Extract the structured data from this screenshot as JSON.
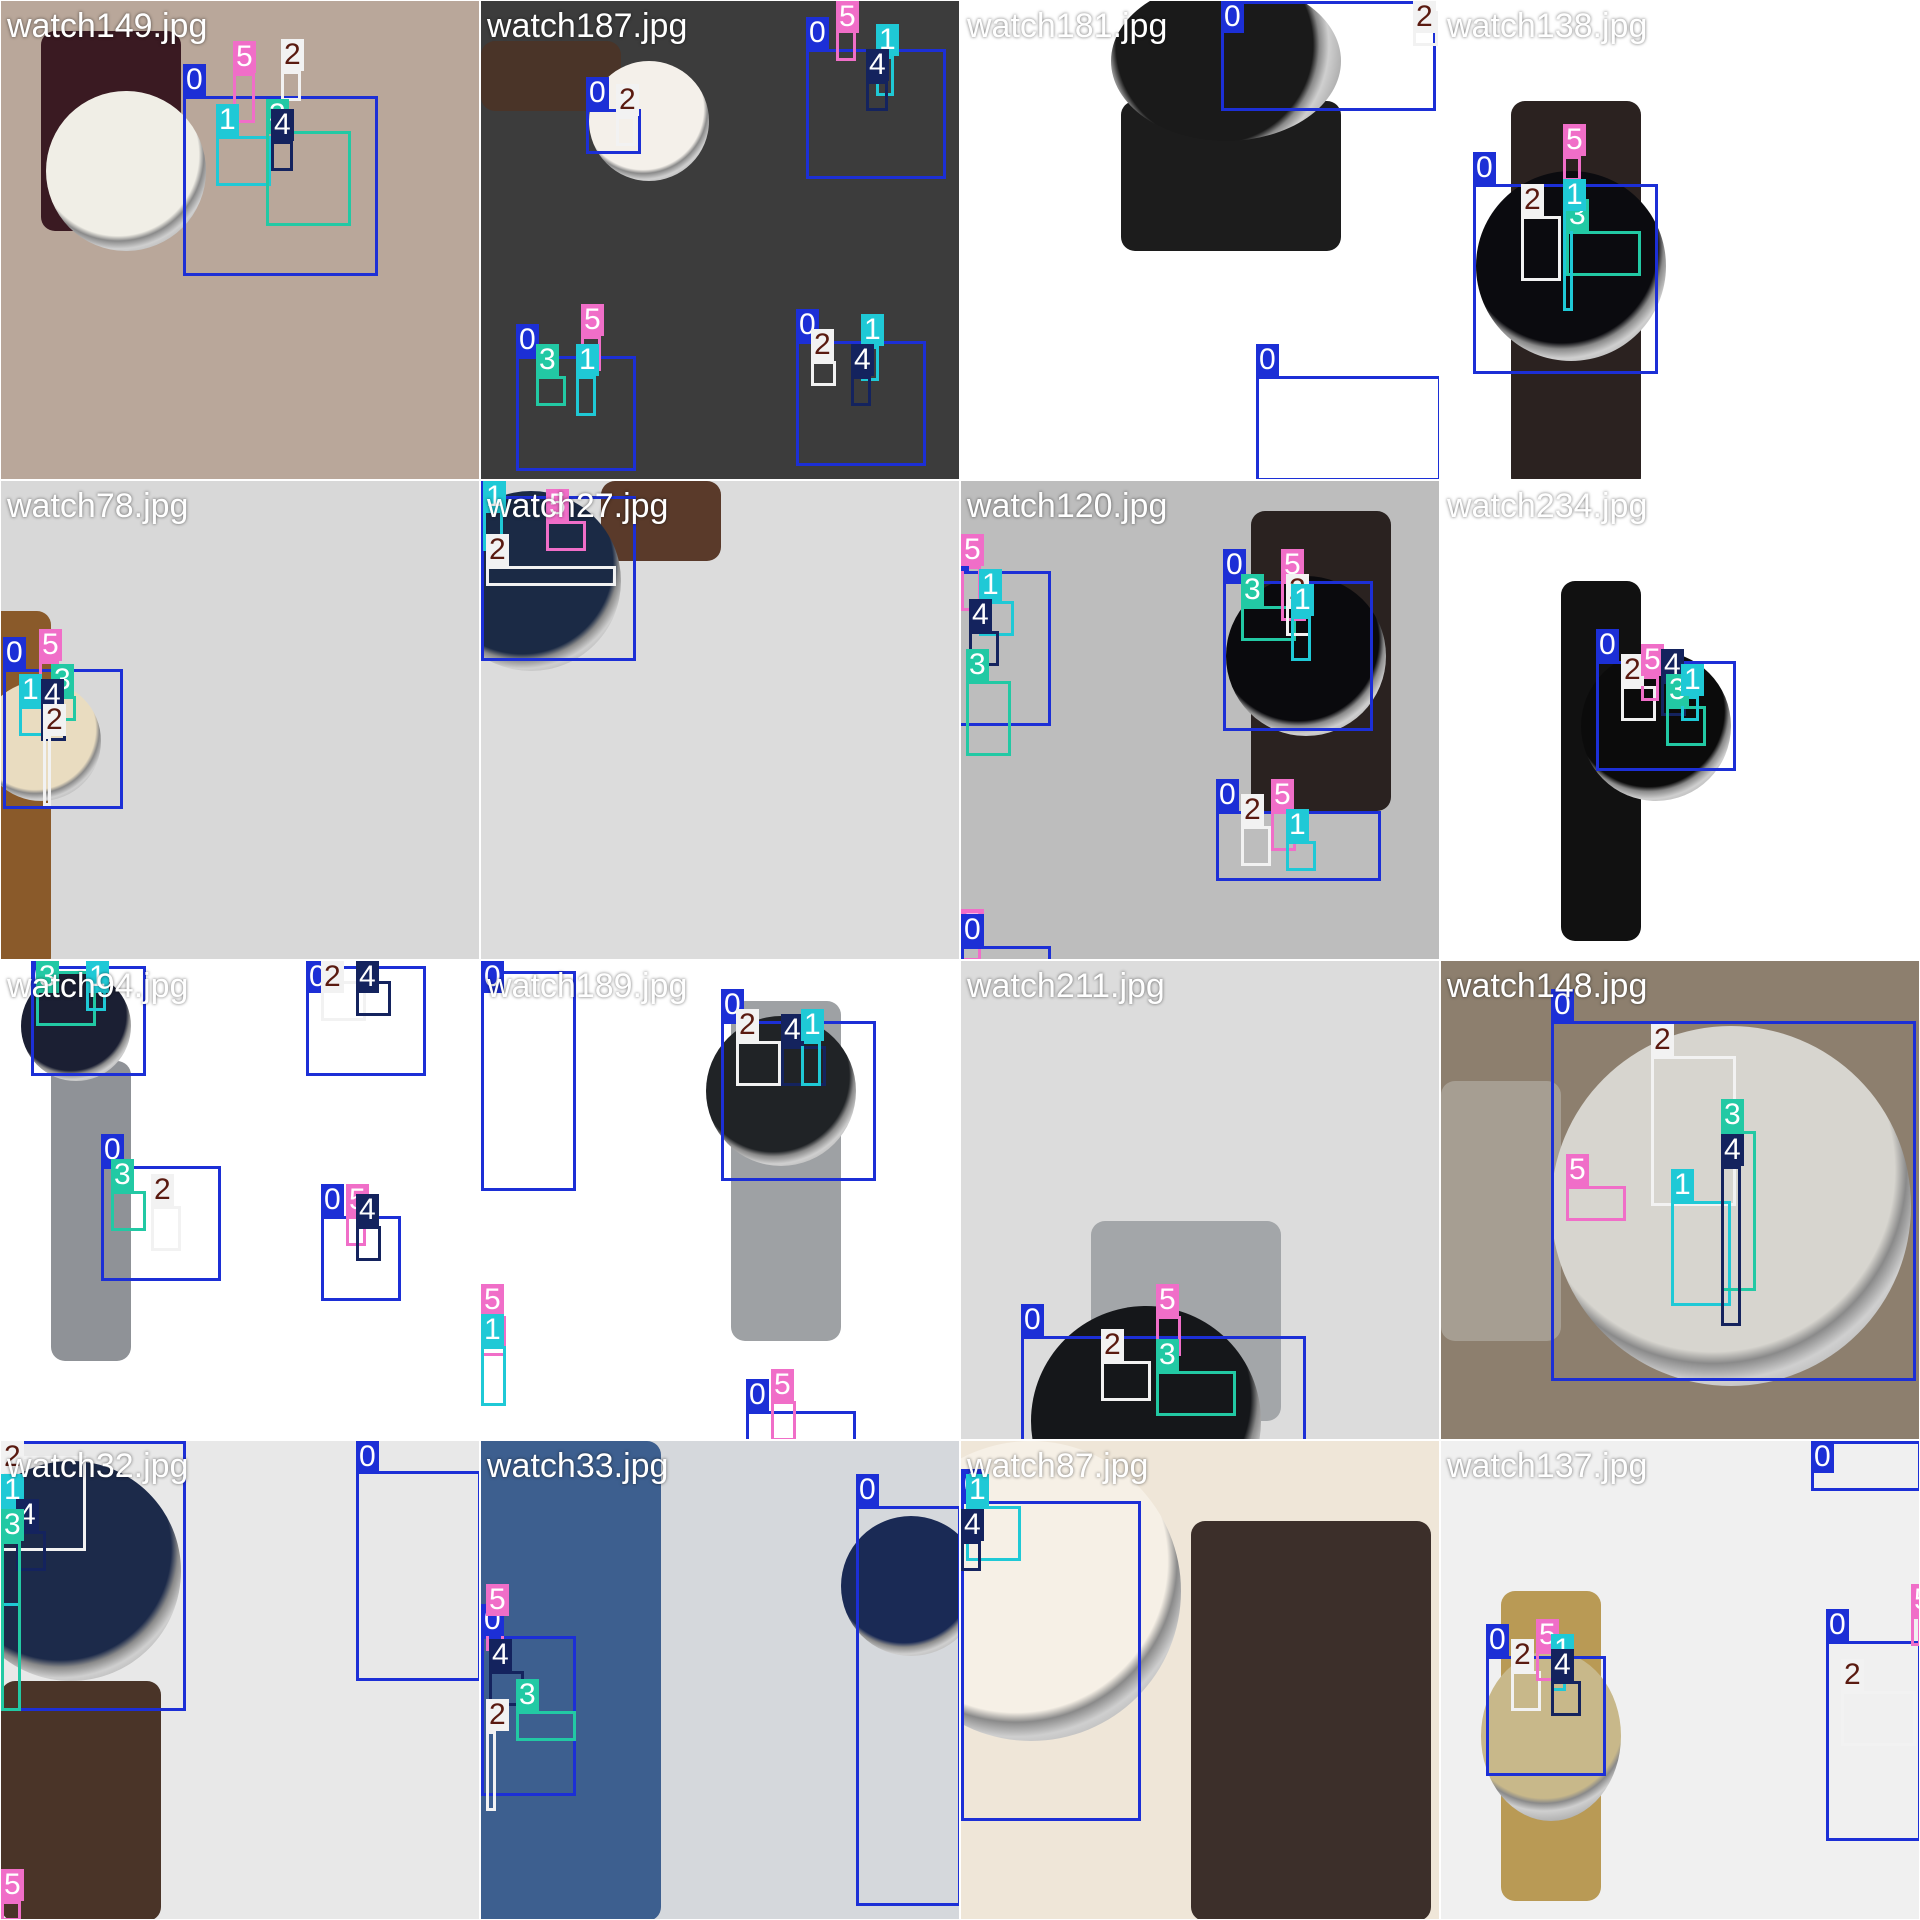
{
  "colors": {
    "class_0": "#1c2fd6",
    "class_1": "#1fc9d6",
    "class_2": "#f2f2f2",
    "class_3": "#22c9a4",
    "class_4": "#14235e",
    "class_5": "#f06ec8"
  },
  "label_bg": {
    "class_0": "#1c2fd6",
    "class_1": "#1fc9d6",
    "class_2": "#f2f2f2",
    "class_3": "#22c9a4",
    "class_4": "#14235e",
    "class_5": "#f06ec8"
  },
  "label_fg": {
    "class_0": "#ffffff",
    "class_1": "#ffffff",
    "class_2": "#5a1a10",
    "class_3": "#ffffff",
    "class_4": "#ffffff",
    "class_5": "#ffffff"
  },
  "tiles": [
    {
      "filename": "watch149.jpg",
      "bg": "#b9a79a",
      "dial": "#f0eee6",
      "strap": "#3a1a22"
    },
    {
      "filename": "watch187.jpg",
      "bg": "#3c3c3c",
      "dial": "#f4f0ea",
      "strap": "#4a3428"
    },
    {
      "filename": "watch181.jpg",
      "bg": "#ffffff",
      "dial": "#1a1a1a",
      "strap": "#1c1c1c"
    },
    {
      "filename": "watch138.jpg",
      "bg": "#ffffff",
      "dial": "#0b0b0f",
      "strap": "#2b2220"
    },
    {
      "filename": "watch78.jpg",
      "bg": "#d8d8d8",
      "dial": "#e9dcc0",
      "strap": "#8a5a2a"
    },
    {
      "filename": "watch27.jpg",
      "bg": "#dcdcdc",
      "dial": "#1b2a45",
      "strap": "#5a3a2a"
    },
    {
      "filename": "watch120.jpg",
      "bg": "#bdbdbd",
      "dial": "#0a0a0d",
      "strap": "#2a2220"
    },
    {
      "filename": "watch234.jpg",
      "bg": "#ffffff",
      "dial": "#0b0b0b",
      "strap": "#111111"
    },
    {
      "filename": "watch94.jpg",
      "bg": "#ffffff",
      "dial": "#1b1f33",
      "strap": "#8f9297"
    },
    {
      "filename": "watch189.jpg",
      "bg": "#ffffff",
      "dial": "#202326",
      "strap": "#9ea1a4"
    },
    {
      "filename": "watch211.jpg",
      "bg": "#dcdcdc",
      "dial": "#15171a",
      "strap": "#a3a6a9"
    },
    {
      "filename": "watch148.jpg",
      "bg": "#8d7f6e",
      "dial": "#d7d5cf",
      "strap": "#a69e92"
    },
    {
      "filename": "watch32.jpg",
      "bg": "#e8e8e8",
      "dial": "#1c2a4a",
      "strap": "#4a3428"
    },
    {
      "filename": "watch33.jpg",
      "bg": "#d5d8dc",
      "dial": "#1a2a55",
      "strap": "#3d5f8f"
    },
    {
      "filename": "watch87.jpg",
      "bg": "#efe6d8",
      "dial": "#f6f0e6",
      "strap": "#3c2f2a"
    },
    {
      "filename": "watch137.jpg",
      "bg": "#f0f0f0",
      "dial": "#c8b88a",
      "strap": "#b99a55"
    }
  ]
}
